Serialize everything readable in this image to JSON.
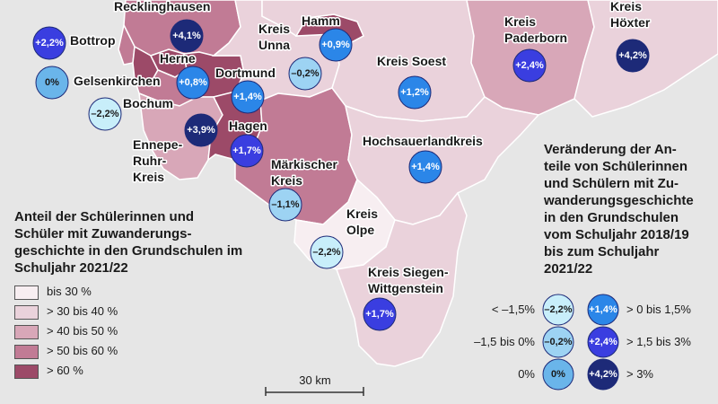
{
  "colors": {
    "class1": "#f7eef1",
    "class2": "#ead2db",
    "class3": "#d8a7b8",
    "class4": "#c17b95",
    "class5": "#9c4a68",
    "outside": "#e6e6e6",
    "bubble_lt_m15": "#c8eefa",
    "bubble_m15_0": "#9dd3f3",
    "bubble_0": "#6ab5ea",
    "bubble_0_15": "#2b86e8",
    "bubble_15_3": "#3a3ee0",
    "bubble_gt3": "#1d2a78"
  },
  "regions": [
    {
      "id": "recklinghausen",
      "name": "Recklinghausen",
      "share_class": "class4",
      "change": "+4,1%",
      "change_class": "gt3"
    },
    {
      "id": "bottrop",
      "name": "Bottrop",
      "share_class": "class4",
      "change": "+2,2%",
      "change_class": "15_3"
    },
    {
      "id": "gelsenkirchen",
      "name": "Gelsenkirchen",
      "share_class": "class5",
      "change": "0%",
      "change_class": "zero"
    },
    {
      "id": "herne",
      "name": "Herne",
      "share_class": "class5",
      "change": "+0,8%",
      "change_class": "0_15"
    },
    {
      "id": "bochum",
      "name": "Bochum",
      "share_class": "class4",
      "change": "–2,2%",
      "change_class": "lt_m15"
    },
    {
      "id": "dortmund",
      "name": "Dortmund",
      "share_class": "class5",
      "change": "+1,4%",
      "change_class": "0_15"
    },
    {
      "id": "kreis-unna",
      "name": "Kreis\nUnna",
      "share_class": "class2",
      "change": "–0,2%",
      "change_class": "m15_0"
    },
    {
      "id": "hamm",
      "name": "Hamm",
      "share_class": "class5",
      "change": "+0,9%",
      "change_class": "0_15"
    },
    {
      "id": "kreis-soest",
      "name": "Kreis Soest",
      "share_class": "class2",
      "change": "+1,2%",
      "change_class": "0_15"
    },
    {
      "id": "kreis-paderborn",
      "name": "Kreis\nPaderborn",
      "share_class": "class3",
      "change": "+2,4%",
      "change_class": "15_3"
    },
    {
      "id": "kreis-hoexter",
      "name": "Kreis\nHöxter",
      "share_class": "class2",
      "change": "+4,2%",
      "change_class": "gt3"
    },
    {
      "id": "ennepe-ruhr-kreis",
      "name": "Ennepe-\nRuhr-\nKreis",
      "share_class": "class3",
      "change": "+3,9%",
      "change_class": "gt3"
    },
    {
      "id": "hagen",
      "name": "Hagen",
      "share_class": "class5",
      "change": "+1,7%",
      "change_class": "15_3"
    },
    {
      "id": "maerkischer-kreis",
      "name": "Märkischer\nKreis",
      "share_class": "class4",
      "change": "–1,1%",
      "change_class": "m15_0"
    },
    {
      "id": "hochsauerlandkreis",
      "name": "Hochsauerlandkreis",
      "share_class": "class2",
      "change": "+1,4%",
      "change_class": "0_15"
    },
    {
      "id": "kreis-olpe",
      "name": "Kreis\nOlpe",
      "share_class": "class1",
      "change": "–2,2%",
      "change_class": "lt_m15"
    },
    {
      "id": "kreis-siegen-wittgenstein",
      "name": "Kreis Siegen-\nWittgenstein",
      "share_class": "class2",
      "change": "+1,7%",
      "change_class": "15_3"
    }
  ],
  "legend_share": {
    "title": "Anteil der Schülerinnen und\nSchüler mit Zuwanderungs-\ngeschichte in den Grundschulen im\nSchuljahr 2021/22",
    "items": [
      {
        "label": "bis 30 %",
        "color_key": "class1"
      },
      {
        "label": "> 30 bis 40 %",
        "color_key": "class2"
      },
      {
        "label": "> 40 bis 50 %",
        "color_key": "class3"
      },
      {
        "label": "> 50 bis 60 %",
        "color_key": "class4"
      },
      {
        "label": "> 60 %",
        "color_key": "class5"
      }
    ]
  },
  "legend_change": {
    "title": "Veränderung der An-\nteile von Schülerinnen\nund Schülern mit Zu-\nwanderungsgeschichte\nin den Grundschulen\nvom Schuljahr 2018/19\nbis zum Schuljahr\n2021/22",
    "rows": [
      {
        "left_label": "< –1,5%",
        "left_sample": "–2,2%",
        "left_color_key": "bubble_lt_m15",
        "right_sample": "+1,4%",
        "right_color_key": "bubble_0_15",
        "right_label": "> 0 bis 1,5%"
      },
      {
        "left_label": "–1,5 bis 0%",
        "left_sample": "–0,2%",
        "left_color_key": "bubble_m15_0",
        "right_sample": "+2,4%",
        "right_color_key": "bubble_15_3",
        "right_label": "> 1,5 bis 3%"
      },
      {
        "left_label": "0%",
        "left_sample": "0%",
        "left_color_key": "bubble_0",
        "right_sample": "+4,2%",
        "right_color_key": "bubble_gt3",
        "right_label": "> 3%"
      }
    ]
  },
  "scale_bar": {
    "label": "30 km"
  }
}
